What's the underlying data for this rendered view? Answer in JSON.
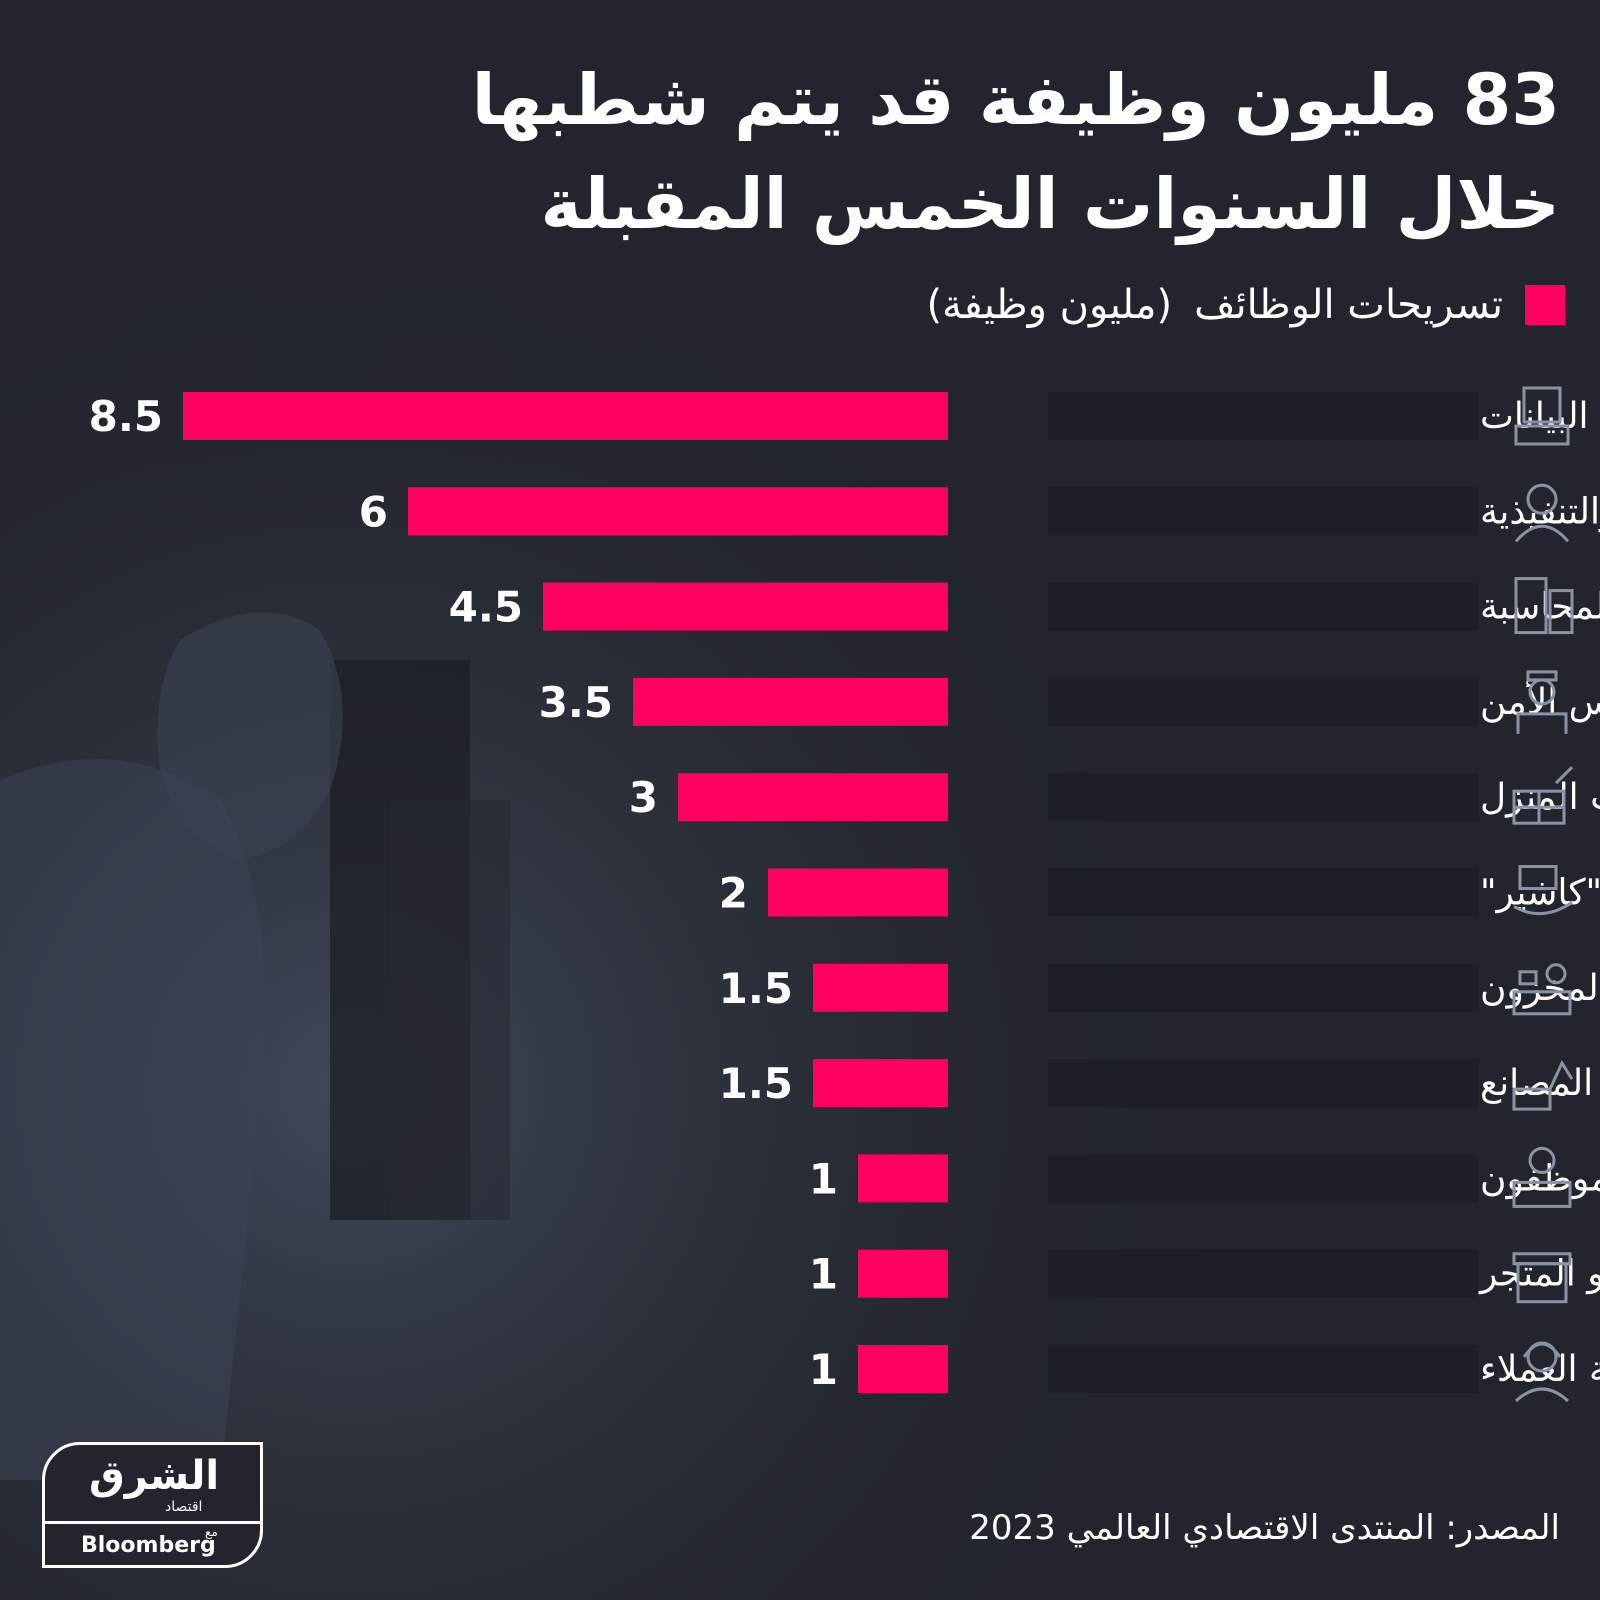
{
  "title_lines": [
    "83 مليون وظيفة قد يتم شطبها",
    "خلال السنوات الخمس المقبلة"
  ],
  "legend": {
    "label": "تسريحات الوظائف",
    "unit": "(مليون وظيفة)",
    "color": "#ff005e"
  },
  "source": "المصدر: المنتدى الاقتصادي العالمي 2023",
  "logo": {
    "arabic": "الشرق",
    "arabic_sub": "اقتصاد",
    "with": "مع",
    "english": "Bloomberg"
  },
  "colors": {
    "background": "#22252d",
    "bar": "#ff005e",
    "icon": "#8a93a6"
  },
  "chart_data": {
    "type": "bar",
    "orientation": "horizontal",
    "direction": "right-to-left",
    "categories": [
      "إدخال البيانات",
      "السكرتارية الإدارية والتنفيذية",
      "المحاسبة",
      "حراس الأمن",
      "البناء ومدبرات المنزل",
      "الصرافة \"كاشير\"",
      "تسجيل المواد والمخزون",
      "التجميع في المصانع",
      "صرافو البنوك والموظفون",
      "بائعو المتجر",
      "خدمة العملاء"
    ],
    "values": [
      8.5,
      6,
      4.5,
      3.5,
      3,
      2,
      1.5,
      1.5,
      1,
      1,
      1
    ],
    "value_labels": [
      "8.5",
      "6",
      "4.5",
      "3.5",
      "3",
      "2",
      "1.5",
      "1.5",
      "1",
      "1",
      "1"
    ],
    "icons": [
      "keyboard-icon",
      "secretary-icon",
      "calculator-icon",
      "security-guard-icon",
      "bricks-icon",
      "money-hand-icon",
      "inventory-desk-icon",
      "robot-arm-icon",
      "bank-teller-icon",
      "shop-stall-icon",
      "headset-agent-icon"
    ],
    "legend": "top-right",
    "grid": false
  }
}
